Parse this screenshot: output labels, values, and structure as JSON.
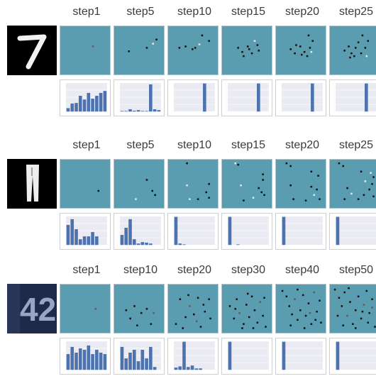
{
  "colors": {
    "tile_bg": "#5a9db0",
    "hist_plot_bg": "#eaeaf2",
    "bar": "#4c72b0",
    "pixel_dark": "#111111",
    "pixel_light": "#e8e8e8",
    "pixel_gray": "#5c5c5c"
  },
  "rows": [
    {
      "image_digit": "7",
      "image_style": "mnist-digit",
      "steps": [
        "step1",
        "step5",
        "step10",
        "step15",
        "step20",
        "step25"
      ],
      "histograms": [
        [
          0.12,
          0.28,
          0.3,
          0.55,
          0.42,
          0.65,
          0.45,
          0.55,
          0.65,
          0.72
        ],
        [
          0.02,
          0.02,
          0.08,
          0.03,
          0.05,
          0.02,
          0.02,
          0.95,
          0.08,
          0.05
        ],
        [
          0.0,
          0.0,
          0.0,
          0.0,
          0.0,
          0.0,
          0.0,
          0.98,
          0.0,
          0.0
        ],
        [
          0.0,
          0.0,
          0.0,
          0.0,
          0.0,
          0.0,
          0.0,
          0.98,
          0.0,
          0.0
        ],
        [
          0.0,
          0.0,
          0.0,
          0.0,
          0.0,
          0.0,
          0.0,
          0.98,
          0.0,
          0.0
        ],
        [
          0.0,
          0.0,
          0.0,
          0.0,
          0.0,
          0.0,
          0.0,
          0.98,
          0.0,
          0.0
        ]
      ]
    },
    {
      "image_digit": "trousers",
      "image_style": "fashion-item",
      "steps": [
        "step1",
        "step5",
        "step10",
        "step15",
        "step20",
        "step25"
      ],
      "histograms": [
        [
          0.7,
          0.9,
          0.55,
          0.2,
          0.3,
          0.3,
          0.45,
          0.3,
          0.0,
          0.0
        ],
        [
          0.35,
          0.6,
          0.9,
          0.2,
          0.05,
          0.1,
          0.08,
          0.05,
          0.0,
          0.0
        ],
        [
          0.98,
          0.05,
          0.02,
          0.0,
          0.0,
          0.0,
          0.0,
          0.0,
          0.0,
          0.0
        ],
        [
          0.98,
          0.0,
          0.02,
          0.0,
          0.0,
          0.0,
          0.0,
          0.0,
          0.0,
          0.0
        ],
        [
          0.98,
          0.0,
          0.0,
          0.0,
          0.0,
          0.0,
          0.0,
          0.0,
          0.0,
          0.0
        ],
        [
          0.98,
          0.0,
          0.0,
          0.0,
          0.0,
          0.0,
          0.0,
          0.0,
          0.0,
          0.0
        ]
      ]
    },
    {
      "image_digit": "2",
      "image_style": "svhn-digit",
      "steps": [
        "step1",
        "step10",
        "step20",
        "step30",
        "step40",
        "step50"
      ],
      "histograms": [
        [
          0.55,
          0.8,
          0.6,
          0.75,
          0.7,
          0.85,
          0.55,
          0.7,
          0.6,
          0.55
        ],
        [
          0.8,
          0.4,
          0.6,
          0.7,
          0.3,
          0.7,
          0.4,
          0.8,
          0.1,
          0.0
        ],
        [
          0.08,
          0.12,
          0.98,
          0.1,
          0.15,
          0.05,
          0.05,
          0.0,
          0.0,
          0.0
        ],
        [
          0.98,
          0.0,
          0.0,
          0.0,
          0.0,
          0.0,
          0.0,
          0.0,
          0.0,
          0.0
        ],
        [
          0.98,
          0.0,
          0.0,
          0.0,
          0.0,
          0.0,
          0.0,
          0.0,
          0.0,
          0.0
        ],
        [
          0.98,
          0.0,
          0.0,
          0.0,
          0.0,
          0.0,
          0.0,
          0.0,
          0.0,
          0.0
        ]
      ]
    }
  ],
  "dots": [
    [
      [
        [
          46,
          28,
          "g"
        ]
      ],
      [
        [
          20,
          35,
          "d"
        ],
        [
          46,
          30,
          "d"
        ],
        [
          55,
          24,
          "l"
        ],
        [
          60,
          18,
          "d"
        ]
      ],
      [
        [
          15,
          30,
          "d"
        ],
        [
          24,
          28,
          "d"
        ],
        [
          34,
          32,
          "d"
        ],
        [
          44,
          25,
          "l"
        ],
        [
          48,
          12,
          "d"
        ],
        [
          58,
          20,
          "d"
        ],
        [
          38,
          30,
          "d"
        ]
      ],
      [
        [
          22,
          30,
          "d"
        ],
        [
          28,
          36,
          "d"
        ],
        [
          36,
          28,
          "d"
        ],
        [
          42,
          38,
          "d"
        ],
        [
          50,
          26,
          "d"
        ],
        [
          52,
          34,
          "d"
        ],
        [
          30,
          42,
          "d"
        ],
        [
          46,
          20,
          "l"
        ],
        [
          38,
          32,
          "d"
        ]
      ],
      [
        [
          20,
          32,
          "d"
        ],
        [
          26,
          38,
          "d"
        ],
        [
          34,
          28,
          "d"
        ],
        [
          40,
          36,
          "d"
        ],
        [
          48,
          30,
          "d"
        ],
        [
          52,
          20,
          "d"
        ],
        [
          28,
          26,
          "d"
        ],
        [
          44,
          42,
          "d"
        ],
        [
          46,
          12,
          "d"
        ],
        [
          36,
          40,
          "d"
        ],
        [
          50,
          36,
          "l"
        ]
      ],
      [
        [
          20,
          34,
          "d"
        ],
        [
          26,
          28,
          "d"
        ],
        [
          30,
          38,
          "d"
        ],
        [
          36,
          30,
          "d"
        ],
        [
          40,
          22,
          "d"
        ],
        [
          44,
          38,
          "d"
        ],
        [
          50,
          30,
          "d"
        ],
        [
          54,
          20,
          "d"
        ],
        [
          34,
          42,
          "d"
        ],
        [
          46,
          12,
          "d"
        ],
        [
          28,
          44,
          "d"
        ],
        [
          52,
          42,
          "l"
        ]
      ]
    ],
    [
      [
        [
          54,
          44,
          "d"
        ]
      ],
      [
        [
          46,
          28,
          "d"
        ],
        [
          54,
          44,
          "d"
        ],
        [
          58,
          50,
          "d"
        ],
        [
          30,
          56,
          "l"
        ]
      ],
      [
        [
          26,
          4,
          "d"
        ],
        [
          58,
          34,
          "d"
        ],
        [
          54,
          46,
          "d"
        ],
        [
          58,
          54,
          "d"
        ],
        [
          26,
          36,
          "l"
        ],
        [
          42,
          56,
          "d"
        ],
        [
          30,
          56,
          "l"
        ]
      ],
      [
        [
          18,
          4,
          "l"
        ],
        [
          22,
          6,
          "d"
        ],
        [
          58,
          20,
          "d"
        ],
        [
          58,
          28,
          "d"
        ],
        [
          52,
          40,
          "d"
        ],
        [
          56,
          46,
          "d"
        ],
        [
          26,
          36,
          "l"
        ],
        [
          30,
          58,
          "d"
        ],
        [
          44,
          54,
          "l"
        ],
        [
          60,
          50,
          "d"
        ]
      ],
      [
        [
          14,
          4,
          "d"
        ],
        [
          20,
          8,
          "d"
        ],
        [
          50,
          16,
          "d"
        ],
        [
          60,
          22,
          "d"
        ],
        [
          50,
          38,
          "d"
        ],
        [
          58,
          42,
          "d"
        ],
        [
          54,
          50,
          "l"
        ],
        [
          20,
          36,
          "d"
        ],
        [
          24,
          56,
          "d"
        ],
        [
          42,
          58,
          "d"
        ],
        [
          62,
          56,
          "d"
        ]
      ],
      [
        [
          12,
          4,
          "d"
        ],
        [
          18,
          8,
          "d"
        ],
        [
          44,
          16,
          "d"
        ],
        [
          58,
          18,
          "l"
        ],
        [
          62,
          24,
          "d"
        ],
        [
          50,
          30,
          "l"
        ],
        [
          60,
          34,
          "d"
        ],
        [
          56,
          42,
          "d"
        ],
        [
          48,
          50,
          "d"
        ],
        [
          62,
          52,
          "d"
        ],
        [
          24,
          40,
          "d"
        ],
        [
          30,
          48,
          "l"
        ],
        [
          40,
          56,
          "d"
        ],
        [
          20,
          56,
          "d"
        ]
      ]
    ],
    [
      [
        [
          50,
          34,
          "g"
        ]
      ],
      [
        [
          16,
          36,
          "d"
        ],
        [
          22,
          48,
          "d"
        ],
        [
          28,
          30,
          "d"
        ],
        [
          38,
          40,
          "d"
        ],
        [
          46,
          34,
          "d"
        ],
        [
          52,
          56,
          "d"
        ],
        [
          32,
          58,
          "d"
        ],
        [
          56,
          40,
          "g"
        ]
      ],
      [
        [
          10,
          56,
          "d"
        ],
        [
          16,
          20,
          "d"
        ],
        [
          24,
          46,
          "d"
        ],
        [
          30,
          30,
          "g"
        ],
        [
          36,
          42,
          "d"
        ],
        [
          42,
          18,
          "d"
        ],
        [
          46,
          60,
          "d"
        ],
        [
          52,
          38,
          "d"
        ],
        [
          58,
          20,
          "d"
        ],
        [
          60,
          48,
          "d"
        ],
        [
          20,
          62,
          "d"
        ],
        [
          40,
          52,
          "g"
        ],
        [
          28,
          14,
          "d"
        ],
        [
          50,
          28,
          "d"
        ]
      ],
      [
        [
          10,
          30,
          "d"
        ],
        [
          16,
          48,
          "d"
        ],
        [
          20,
          20,
          "d"
        ],
        [
          24,
          40,
          "g"
        ],
        [
          30,
          56,
          "d"
        ],
        [
          34,
          28,
          "d"
        ],
        [
          38,
          46,
          "d"
        ],
        [
          42,
          16,
          "d"
        ],
        [
          46,
          36,
          "d"
        ],
        [
          50,
          54,
          "d"
        ],
        [
          54,
          24,
          "g"
        ],
        [
          58,
          44,
          "d"
        ],
        [
          62,
          60,
          "d"
        ],
        [
          28,
          62,
          "d"
        ],
        [
          44,
          62,
          "d"
        ],
        [
          18,
          34,
          "d"
        ],
        [
          36,
          12,
          "d"
        ],
        [
          60,
          18,
          "d"
        ]
      ],
      [
        [
          8,
          8,
          "d"
        ],
        [
          14,
          16,
          "d"
        ],
        [
          18,
          30,
          "d"
        ],
        [
          22,
          42,
          "d"
        ],
        [
          26,
          20,
          "g"
        ],
        [
          30,
          50,
          "d"
        ],
        [
          34,
          36,
          "d"
        ],
        [
          38,
          14,
          "d"
        ],
        [
          42,
          44,
          "d"
        ],
        [
          46,
          26,
          "d"
        ],
        [
          50,
          56,
          "d"
        ],
        [
          54,
          10,
          "g"
        ],
        [
          58,
          38,
          "d"
        ],
        [
          62,
          22,
          "d"
        ],
        [
          20,
          58,
          "d"
        ],
        [
          40,
          62,
          "d"
        ],
        [
          56,
          50,
          "d"
        ],
        [
          30,
          6,
          "d"
        ],
        [
          48,
          40,
          "g"
        ],
        [
          64,
          54,
          "d"
        ]
      ],
      [
        [
          6,
          6,
          "d"
        ],
        [
          12,
          18,
          "d"
        ],
        [
          16,
          30,
          "d"
        ],
        [
          20,
          10,
          "d"
        ],
        [
          24,
          44,
          "g"
        ],
        [
          28,
          24,
          "d"
        ],
        [
          32,
          56,
          "d"
        ],
        [
          36,
          36,
          "d"
        ],
        [
          40,
          16,
          "d"
        ],
        [
          44,
          48,
          "d"
        ],
        [
          48,
          28,
          "g"
        ],
        [
          52,
          8,
          "d"
        ],
        [
          56,
          40,
          "d"
        ],
        [
          60,
          20,
          "d"
        ],
        [
          64,
          60,
          "d"
        ],
        [
          18,
          58,
          "d"
        ],
        [
          36,
          62,
          "d"
        ],
        [
          54,
          54,
          "d"
        ],
        [
          60,
          32,
          "g"
        ],
        [
          26,
          4,
          "d"
        ],
        [
          46,
          38,
          "d"
        ],
        [
          10,
          44,
          "d"
        ]
      ]
    ]
  ]
}
